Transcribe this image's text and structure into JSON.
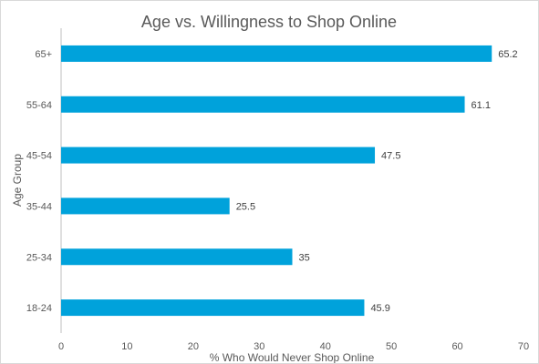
{
  "chart_data": {
    "type": "bar",
    "orientation": "horizontal",
    "title": "Age vs. Willingness to Shop Online",
    "xlabel": "% Who Would Never Shop Online",
    "ylabel": "Age Group",
    "categories": [
      "65+",
      "55-64",
      "45-54",
      "35-44",
      "25-34",
      "18-24"
    ],
    "values": [
      65.2,
      61.1,
      47.5,
      25.5,
      35,
      45.9
    ],
    "data_labels": [
      "65.2",
      "61.1",
      "47.5",
      "25.5",
      "35",
      "45.9"
    ],
    "xlim": [
      0,
      70
    ],
    "xticks": [
      "0",
      "10",
      "20",
      "30",
      "40",
      "50",
      "60",
      "70"
    ],
    "grid": false,
    "legend": "none",
    "bar_color": "#00A2DB"
  }
}
